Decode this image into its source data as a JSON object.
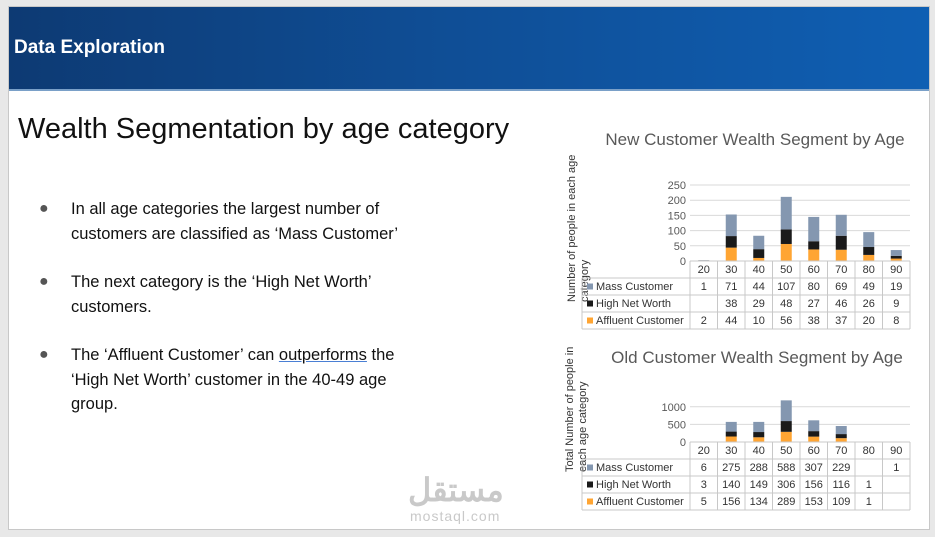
{
  "header": {
    "title": "Data Exploration"
  },
  "slide": {
    "title": "Wealth Segmentation by age category",
    "bullets": [
      {
        "text": "In all age categories the largest number of customers are classified as ‘Mass Customer’"
      },
      {
        "text_before": "The next category is the ‘High Net Worth’ customers."
      },
      {
        "text_before": "The ‘Affluent Customer’ can ",
        "underlined": "outperforms",
        "text_after": " the ‘High Net Worth’ customer in the 40-49 age group."
      }
    ]
  },
  "colors": {
    "mass": "#8497b0",
    "high": "#1a1a1a",
    "affluent": "#ffa533"
  },
  "watermark": {
    "text": "مستقل",
    "sub": "mostaql.com"
  },
  "chart_data": [
    {
      "type": "bar",
      "stacked": true,
      "title": "New Customer Wealth Segment by Age",
      "ylabel": "Number of people in each age category",
      "categories": [
        "20",
        "30",
        "40",
        "50",
        "60",
        "70",
        "80",
        "90"
      ],
      "ylim": [
        0,
        250
      ],
      "yticks": [
        0,
        50,
        100,
        150,
        200,
        250
      ],
      "grid": true,
      "series": [
        {
          "name": "Mass Customer",
          "values": [
            1,
            71,
            44,
            107,
            80,
            69,
            49,
            19
          ]
        },
        {
          "name": "High Net Worth",
          "values": [
            null,
            38,
            29,
            48,
            27,
            46,
            26,
            9
          ]
        },
        {
          "name": "Affluent Customer",
          "values": [
            2,
            44,
            10,
            56,
            38,
            37,
            20,
            8
          ]
        }
      ]
    },
    {
      "type": "bar",
      "stacked": true,
      "title": "Old Customer Wealth Segment by Age",
      "ylabel": "Total Number of people in each age category",
      "categories": [
        "20",
        "30",
        "40",
        "50",
        "60",
        "70",
        "80",
        "90"
      ],
      "ylim": [
        0,
        1250
      ],
      "yticks": [
        0,
        500,
        1000
      ],
      "grid": true,
      "series": [
        {
          "name": "Mass Customer",
          "values": [
            6,
            275,
            288,
            588,
            307,
            229,
            null,
            1
          ]
        },
        {
          "name": "High Net Worth",
          "values": [
            3,
            140,
            149,
            306,
            156,
            116,
            1,
            null
          ]
        },
        {
          "name": "Affluent Customer",
          "values": [
            5,
            156,
            134,
            289,
            153,
            109,
            1,
            null
          ]
        }
      ]
    }
  ]
}
